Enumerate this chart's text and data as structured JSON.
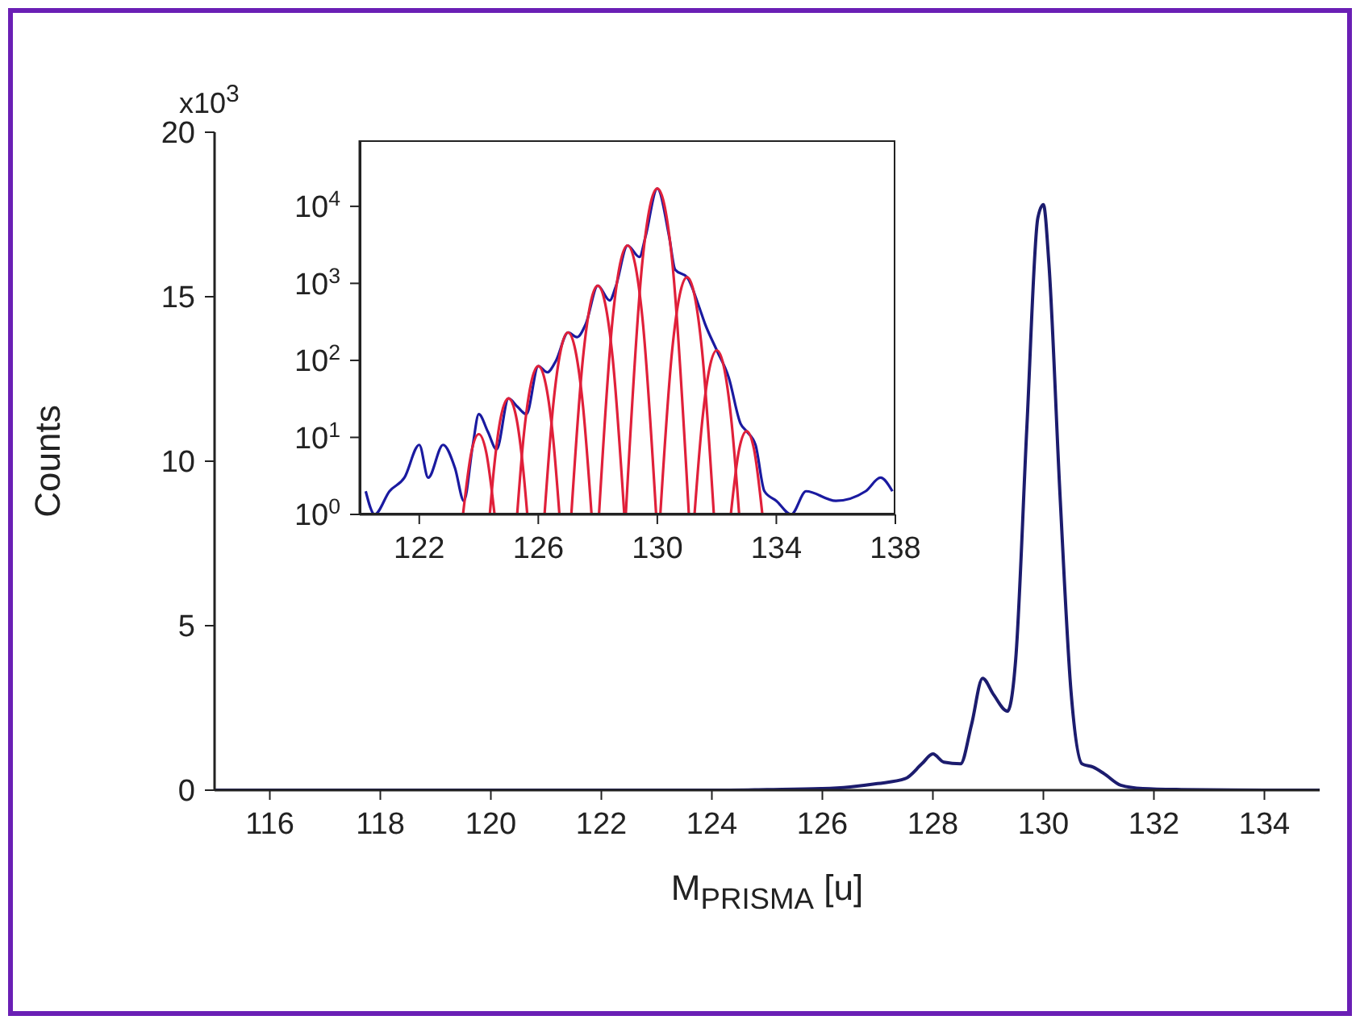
{
  "chart_data": [
    {
      "type": "line",
      "xlabel": "M$_{PRISMA}$ [u]",
      "ylabel": "Counts",
      "annotations": [
        "x10$^{3}$"
      ],
      "xlim": [
        115,
        135
      ],
      "xticks": [
        116,
        118,
        120,
        122,
        124,
        126,
        128,
        130,
        132,
        134
      ],
      "ylim": [
        0,
        20
      ],
      "yticks": [
        0,
        5,
        10,
        15,
        20
      ],
      "series": [
        {
          "color": "#1c1c6e",
          "x": [
            115,
            116,
            118,
            120,
            122,
            124,
            125,
            126,
            126.5,
            127,
            127.5,
            127.8,
            128,
            128.2,
            128.5,
            128.7,
            128.9,
            129.1,
            129.35,
            129.5,
            129.7,
            129.9,
            130,
            130.1,
            130.3,
            130.5,
            130.7,
            130.9,
            131.1,
            131.4,
            131.8,
            132.5,
            134,
            135
          ],
          "values": [
            0,
            0,
            0,
            0,
            0,
            0,
            0.02,
            0.05,
            0.1,
            0.2,
            0.35,
            0.8,
            1.1,
            0.85,
            0.8,
            2.0,
            3.4,
            2.9,
            2.4,
            4,
            11,
            17.4,
            17.8,
            16,
            9,
            3,
            0.8,
            0.7,
            0.5,
            0.15,
            0.05,
            0.02,
            0,
            0
          ]
        }
      ]
    },
    {
      "type": "line",
      "log": "y",
      "xlim": [
        120,
        138
      ],
      "xticks": [
        122,
        126,
        130,
        134,
        138
      ],
      "ylim": [
        1,
        72000
      ],
      "yticks": [
        {
          "value": 1,
          "label": "10$^{0}$"
        },
        {
          "value": 10,
          "label": "10$^{1}$"
        },
        {
          "value": 100,
          "label": "10$^{2}$"
        },
        {
          "value": 1000,
          "label": "10$^{3}$"
        },
        {
          "value": 10000,
          "label": "10$^{4}$"
        }
      ],
      "series": [
        {
          "color": "#1a1aa0",
          "x": [
            120.2,
            120.5,
            121,
            121.5,
            122,
            122.3,
            122.8,
            123.2,
            123.5,
            123.8,
            124,
            124.3,
            124.6,
            125,
            125.3,
            125.6,
            126,
            126.3,
            126.6,
            127,
            127.3,
            127.6,
            128,
            128.4,
            128.6,
            129,
            129.4,
            129.6,
            130,
            130.4,
            130.6,
            131,
            131.4,
            131.6,
            132,
            132.4,
            132.8,
            133,
            133.3,
            133.6,
            134,
            134.5,
            135,
            136,
            137,
            137.5,
            137.9
          ],
          "values": [
            2,
            1,
            2,
            3,
            8,
            3,
            8,
            4,
            1.5,
            8,
            20,
            12,
            7,
            32,
            25,
            20,
            84,
            70,
            100,
            230,
            200,
            300,
            930,
            600,
            900,
            3100,
            2200,
            4000,
            17000,
            4000,
            1500,
            1200,
            500,
            300,
            135,
            60,
            15,
            12,
            8,
            2,
            1.5,
            1,
            2,
            1.5,
            2,
            3,
            2
          ]
        },
        {
          "color": "#e0203a",
          "x": [
            123.47,
            123.75,
            124,
            124.25,
            124.53
          ],
          "values": [
            1,
            6.4,
            11,
            6.4,
            1
          ]
        },
        {
          "color": "#e0203a",
          "x": [
            124.37,
            124.5,
            124.75,
            125,
            125.25,
            125.5,
            125.63
          ],
          "values": [
            1,
            3.6,
            19,
            32,
            19,
            3.6,
            1
          ]
        },
        {
          "color": "#e0203a",
          "x": [
            125.29,
            125.5,
            125.75,
            126,
            126.25,
            126.5,
            126.71
          ],
          "values": [
            1,
            9.6,
            49,
            84,
            49,
            9.6,
            1
          ]
        },
        {
          "color": "#e0203a",
          "x": [
            126.21,
            126.5,
            126.75,
            127,
            127.25,
            127.5,
            127.79
          ],
          "values": [
            1,
            26,
            133,
            230,
            133,
            26,
            1
          ]
        },
        {
          "color": "#e0203a",
          "x": [
            127.11,
            127.5,
            127.75,
            128,
            128.25,
            128.5,
            128.89
          ],
          "values": [
            1,
            106,
            540,
            930,
            540,
            106,
            1
          ]
        },
        {
          "color": "#e0203a",
          "x": [
            128.04,
            128.5,
            128.75,
            129,
            129.25,
            129.5,
            129.96
          ],
          "values": [
            1,
            353,
            1800,
            3100,
            1800,
            353,
            1
          ]
        },
        {
          "color": "#e0203a",
          "x": [
            128.94,
            129.5,
            129.75,
            130,
            130.25,
            130.5,
            131.06
          ],
          "values": [
            1,
            1940,
            9860,
            17000,
            9860,
            1940,
            1
          ]
        },
        {
          "color": "#e0203a",
          "x": [
            130.1,
            130.5,
            130.75,
            131,
            131.25,
            131.5,
            131.9
          ],
          "values": [
            1,
            137,
            700,
            1200,
            700,
            137,
            1
          ]
        },
        {
          "color": "#e0203a",
          "x": [
            131.25,
            131.5,
            131.75,
            132,
            132.25,
            132.5,
            132.75
          ],
          "values": [
            1,
            15,
            78,
            135,
            78,
            15,
            1
          ]
        },
        {
          "color": "#e0203a",
          "x": [
            132.47,
            132.75,
            133,
            133.25,
            133.53
          ],
          "values": [
            1,
            7,
            12,
            7,
            1
          ]
        }
      ]
    }
  ]
}
